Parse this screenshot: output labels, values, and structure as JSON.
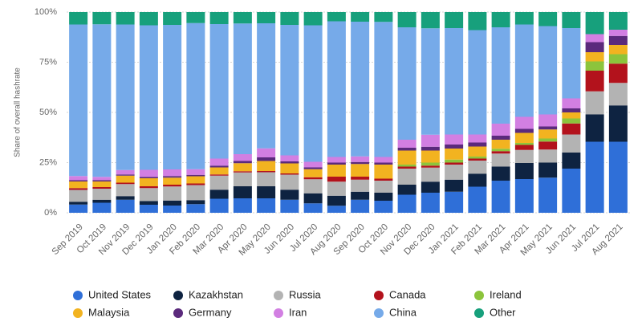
{
  "chart_data": {
    "type": "stacked_bar",
    "y_axis_title": "Share of overall hashrate",
    "categories": [
      "Sep 2019",
      "Oct 2019",
      "Nov 2019",
      "Dec 2019",
      "Jan 2020",
      "Feb 2020",
      "Mar 2020",
      "Apr 2020",
      "May 2020",
      "Jun 2020",
      "Jul 2020",
      "Aug 2020",
      "Sep 2020",
      "Oct 2020",
      "Nov 2020",
      "Dec 2020",
      "Jan 2021",
      "Feb 2021",
      "Mar 2021",
      "Apr 2021",
      "May 2021",
      "Jun 2021",
      "Jul 2021",
      "Aug 2021"
    ],
    "ylim": [
      0,
      100
    ],
    "yticks": [
      {
        "value": 0,
        "label": "0%"
      },
      {
        "value": 25,
        "label": "25%"
      },
      {
        "value": 50,
        "label": "50%"
      },
      {
        "value": 75,
        "label": "75%"
      },
      {
        "value": 100,
        "label": "100%"
      }
    ],
    "grid": true,
    "series": [
      {
        "name": "United States",
        "color": "#2f6fd8",
        "values": [
          4.1,
          5.0,
          6.5,
          4.0,
          3.6,
          4.3,
          7.0,
          7.2,
          7.2,
          6.5,
          4.7,
          3.5,
          6.5,
          6.0,
          9.0,
          10.0,
          10.5,
          13.0,
          16.0,
          16.8,
          17.5,
          22.0,
          35.4,
          35.4
        ]
      },
      {
        "name": "Kazakhstan",
        "color": "#0e2341",
        "values": [
          1.4,
          1.5,
          1.8,
          1.8,
          2.5,
          2.0,
          4.5,
          6.0,
          6.0,
          5.0,
          5.0,
          5.0,
          4.0,
          4.0,
          5.0,
          5.5,
          6.0,
          6.5,
          7.0,
          8.0,
          7.5,
          8.0,
          13.6,
          18.1
        ]
      },
      {
        "name": "Russia",
        "color": "#b3b3b3",
        "values": [
          5.9,
          5.5,
          6.0,
          6.5,
          7.0,
          7.5,
          7.0,
          6.9,
          7.0,
          7.5,
          7.0,
          7.0,
          6.0,
          6.0,
          8.0,
          7.0,
          7.5,
          6.5,
          6.5,
          6.5,
          6.5,
          9.0,
          11.5,
          11.2
        ]
      },
      {
        "name": "Canada",
        "color": "#b3121c",
        "values": [
          0.9,
          0.8,
          0.7,
          0.9,
          0.9,
          0.8,
          0.6,
          0.6,
          0.6,
          0.6,
          1.0,
          2.5,
          1.5,
          1.0,
          1.0,
          1.0,
          1.0,
          1.0,
          1.2,
          2.5,
          4.0,
          5.5,
          10.3,
          9.6
        ]
      },
      {
        "name": "Ireland",
        "color": "#8cc43c",
        "values": [
          0,
          0,
          0,
          0,
          0,
          0,
          0,
          0,
          0,
          0,
          0,
          0,
          0,
          0,
          1.0,
          1.5,
          1.5,
          1.0,
          1.2,
          1.0,
          1.5,
          2.5,
          4.6,
          4.7
        ]
      },
      {
        "name": "Malaysia",
        "color": "#f2b320",
        "values": [
          3.3,
          2.8,
          3.5,
          4.0,
          3.5,
          3.6,
          3.5,
          4.0,
          5.0,
          5.0,
          4.0,
          6.0,
          6.3,
          7.0,
          7.0,
          6.0,
          5.5,
          5.0,
          4.5,
          5.0,
          4.5,
          3.0,
          4.6,
          4.6
        ]
      },
      {
        "name": "Germany",
        "color": "#5b2a7c",
        "values": [
          0.6,
          0.7,
          0.6,
          0.7,
          0.8,
          0.7,
          0.9,
          1.1,
          1.8,
          1.0,
          0.9,
          1.0,
          1.0,
          1.0,
          1.4,
          1.9,
          2.0,
          2.0,
          2.0,
          2.0,
          1.5,
          2.0,
          5.0,
          4.5
        ]
      },
      {
        "name": "Iran",
        "color": "#d27fe2",
        "values": [
          2.1,
          1.6,
          2.2,
          3.5,
          3.3,
          2.8,
          3.5,
          3.4,
          4.5,
          3.0,
          2.8,
          2.8,
          2.8,
          2.8,
          4.0,
          6.0,
          5.0,
          4.0,
          6.0,
          6.0,
          6.0,
          5.0,
          4.0,
          3.1
        ]
      },
      {
        "name": "China",
        "color": "#76aae9",
        "values": [
          75.5,
          76.0,
          72.5,
          72.0,
          72.0,
          72.8,
          67.0,
          65.1,
          62.3,
          65.0,
          68.0,
          67.6,
          67.1,
          67.3,
          56.0,
          53.0,
          53.0,
          52.0,
          48.0,
          46.0,
          44.0,
          35.0,
          0,
          0
        ]
      },
      {
        "name": "Other",
        "color": "#17a07c",
        "values": [
          6.2,
          6.1,
          6.2,
          6.6,
          6.4,
          5.5,
          6.0,
          5.7,
          5.6,
          6.4,
          6.6,
          4.6,
          4.8,
          4.9,
          7.6,
          8.1,
          8.0,
          9.0,
          7.6,
          6.2,
          7.0,
          8.0,
          11.0,
          8.8
        ]
      }
    ]
  }
}
